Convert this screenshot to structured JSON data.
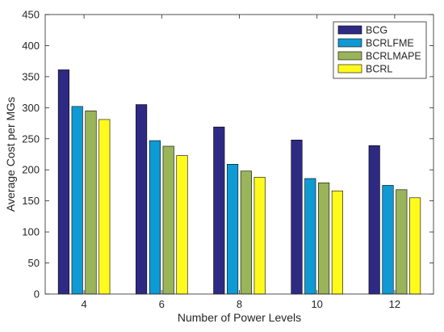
{
  "chart_data": {
    "type": "bar",
    "xlabel": "Number of Power Levels",
    "ylabel": "Average Cost per MGs",
    "categories": [
      "4",
      "6",
      "8",
      "10",
      "12"
    ],
    "ylim": [
      0,
      450
    ],
    "yticks": [
      0,
      50,
      100,
      150,
      200,
      250,
      300,
      350,
      400,
      450
    ],
    "grid": false,
    "legend_position": "top-right",
    "series": [
      {
        "name": "BCG",
        "color": "#2e2a84",
        "values": [
          361,
          305,
          269,
          248,
          239
        ]
      },
      {
        "name": "BCRLFME",
        "color": "#0f9ad4",
        "values": [
          302,
          247,
          209,
          186,
          175
        ]
      },
      {
        "name": "BCRLMAPE",
        "color": "#9ab45a",
        "values": [
          295,
          238,
          198,
          179,
          168
        ]
      },
      {
        "name": "BCRL",
        "color": "#fffa1e",
        "values": [
          281,
          223,
          188,
          166,
          155
        ]
      }
    ]
  }
}
